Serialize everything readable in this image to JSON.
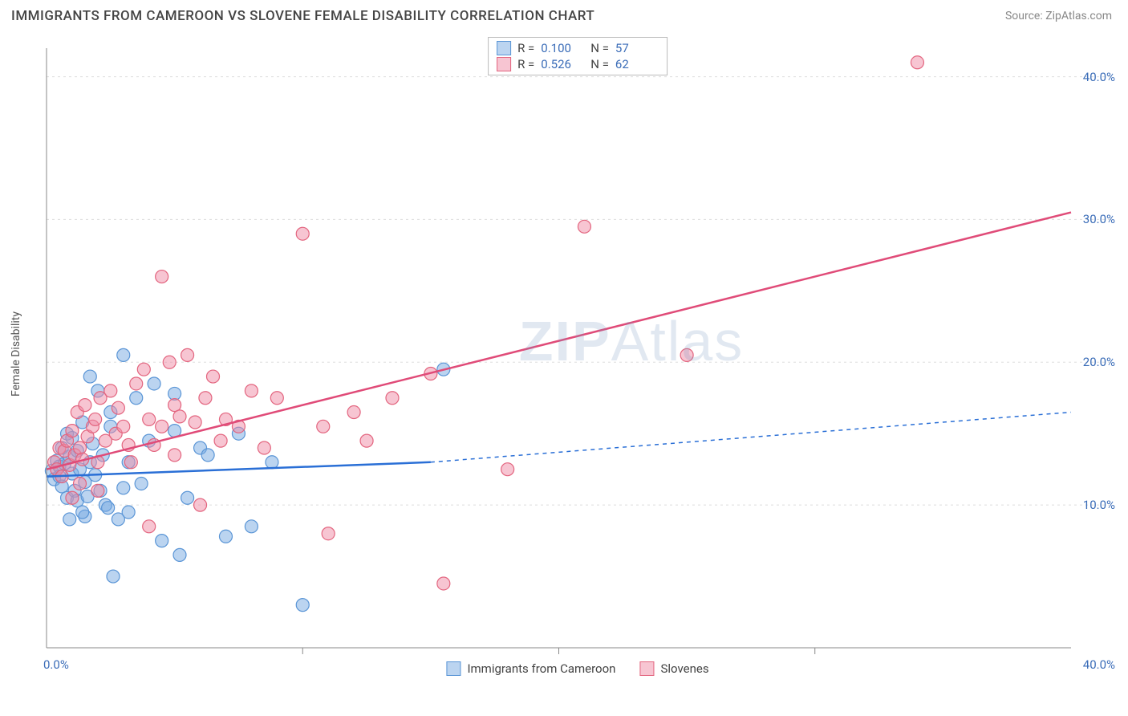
{
  "header": {
    "title": "IMMIGRANTS FROM CAMEROON VS SLOVENE FEMALE DISABILITY CORRELATION CHART",
    "source_label": "Source: ",
    "source_name": "ZipAtlas.com"
  },
  "watermark": {
    "z": "ZIP",
    "rest": "Atlas"
  },
  "chart": {
    "type": "scatter",
    "background_color": "#ffffff",
    "grid_color": "#dddddd",
    "axis_color": "#888888",
    "tick_label_color": "#3b6db8",
    "label_color": "#555555",
    "y_axis_label": "Female Disability",
    "marker_radius": 8,
    "marker_opacity": 0.55,
    "xlim": [
      0,
      40
    ],
    "ylim": [
      0,
      42
    ],
    "x_ticks": [
      {
        "value": 0,
        "label": "0.0%"
      },
      {
        "value": 40,
        "label": "40.0%"
      }
    ],
    "y_ticks": [
      {
        "value": 10,
        "label": "10.0%"
      },
      {
        "value": 20,
        "label": "20.0%"
      },
      {
        "value": 30,
        "label": "30.0%"
      },
      {
        "value": 40,
        "label": "40.0%"
      }
    ],
    "x_tick_marks": [
      10,
      20,
      30
    ],
    "series": [
      {
        "name": "Immigrants from Cameroon",
        "color_fill": "rgba(120,170,225,0.5)",
        "color_stroke": "#5a95d6",
        "line_color": "#2a6fd6",
        "r": "0.100",
        "n": "57",
        "regression": {
          "x1": 0,
          "y1": 12.0,
          "x2_solid": 15,
          "y2_solid": 13.0,
          "x2": 40,
          "y2": 16.5
        },
        "points": [
          [
            0.2,
            12.4
          ],
          [
            0.3,
            11.8
          ],
          [
            0.4,
            13.1
          ],
          [
            0.5,
            12.7
          ],
          [
            0.5,
            12.0
          ],
          [
            0.6,
            14.0
          ],
          [
            0.6,
            11.3
          ],
          [
            0.7,
            12.9
          ],
          [
            0.8,
            15.0
          ],
          [
            0.8,
            10.5
          ],
          [
            0.9,
            13.4
          ],
          [
            1.0,
            14.7
          ],
          [
            1.0,
            12.2
          ],
          [
            1.1,
            11.0
          ],
          [
            1.2,
            10.3
          ],
          [
            1.2,
            13.8
          ],
          [
            1.3,
            12.5
          ],
          [
            1.4,
            15.8
          ],
          [
            1.5,
            9.2
          ],
          [
            1.5,
            11.6
          ],
          [
            1.6,
            10.6
          ],
          [
            1.7,
            19.0
          ],
          [
            1.7,
            13.0
          ],
          [
            1.8,
            14.3
          ],
          [
            1.9,
            12.1
          ],
          [
            2.0,
            18.0
          ],
          [
            2.1,
            11.0
          ],
          [
            2.2,
            13.5
          ],
          [
            2.3,
            10.0
          ],
          [
            2.4,
            9.8
          ],
          [
            2.5,
            15.5
          ],
          [
            2.5,
            16.5
          ],
          [
            2.8,
            9.0
          ],
          [
            3.0,
            11.2
          ],
          [
            3.0,
            20.5
          ],
          [
            3.2,
            13.0
          ],
          [
            3.5,
            17.5
          ],
          [
            3.7,
            11.5
          ],
          [
            4.0,
            14.5
          ],
          [
            4.2,
            18.5
          ],
          [
            4.5,
            7.5
          ],
          [
            5.0,
            15.2
          ],
          [
            5.0,
            17.8
          ],
          [
            5.2,
            6.5
          ],
          [
            5.5,
            10.5
          ],
          [
            6.0,
            14.0
          ],
          [
            6.3,
            13.5
          ],
          [
            7.0,
            7.8
          ],
          [
            7.5,
            15.0
          ],
          [
            8.0,
            8.5
          ],
          [
            8.8,
            13.0
          ],
          [
            10.0,
            3.0
          ],
          [
            2.6,
            5.0
          ],
          [
            1.4,
            9.5
          ],
          [
            0.9,
            9.0
          ],
          [
            3.2,
            9.5
          ],
          [
            15.5,
            19.5
          ]
        ]
      },
      {
        "name": "Slovenes",
        "color_fill": "rgba(240,140,165,0.5)",
        "color_stroke": "#e3657f",
        "line_color": "#e04b78",
        "r": "0.526",
        "n": "62",
        "regression": {
          "x1": 0,
          "y1": 12.5,
          "x2_solid": 40,
          "y2_solid": 30.5,
          "x2": 40,
          "y2": 30.5
        },
        "points": [
          [
            0.3,
            13.0
          ],
          [
            0.4,
            12.5
          ],
          [
            0.5,
            14.0
          ],
          [
            0.6,
            12.0
          ],
          [
            0.7,
            13.8
          ],
          [
            0.8,
            14.5
          ],
          [
            0.9,
            12.8
          ],
          [
            1.0,
            15.2
          ],
          [
            1.1,
            13.5
          ],
          [
            1.2,
            16.5
          ],
          [
            1.3,
            14.0
          ],
          [
            1.4,
            13.2
          ],
          [
            1.5,
            17.0
          ],
          [
            1.6,
            14.8
          ],
          [
            1.8,
            15.5
          ],
          [
            1.9,
            16.0
          ],
          [
            2.0,
            13.0
          ],
          [
            2.1,
            17.5
          ],
          [
            2.3,
            14.5
          ],
          [
            2.5,
            18.0
          ],
          [
            2.7,
            15.0
          ],
          [
            2.8,
            16.8
          ],
          [
            3.0,
            15.5
          ],
          [
            3.2,
            14.2
          ],
          [
            3.5,
            18.5
          ],
          [
            3.8,
            19.5
          ],
          [
            4.0,
            8.5
          ],
          [
            4.0,
            16.0
          ],
          [
            4.2,
            14.2
          ],
          [
            4.5,
            15.5
          ],
          [
            4.5,
            26.0
          ],
          [
            4.8,
            20.0
          ],
          [
            5.0,
            17.0
          ],
          [
            5.2,
            16.2
          ],
          [
            5.5,
            20.5
          ],
          [
            5.8,
            15.8
          ],
          [
            6.0,
            10.0
          ],
          [
            6.2,
            17.5
          ],
          [
            6.5,
            19.0
          ],
          [
            6.8,
            14.5
          ],
          [
            7.0,
            16.0
          ],
          [
            7.5,
            15.5
          ],
          [
            8.0,
            18.0
          ],
          [
            8.5,
            14.0
          ],
          [
            9.0,
            17.5
          ],
          [
            10.0,
            29.0
          ],
          [
            10.8,
            15.5
          ],
          [
            11.0,
            8.0
          ],
          [
            12.0,
            16.5
          ],
          [
            12.5,
            14.5
          ],
          [
            13.5,
            17.5
          ],
          [
            15.0,
            19.2
          ],
          [
            15.5,
            4.5
          ],
          [
            18.0,
            12.5
          ],
          [
            21.0,
            29.5
          ],
          [
            25.0,
            20.5
          ],
          [
            34.0,
            41.0
          ],
          [
            1.0,
            10.5
          ],
          [
            1.3,
            11.5
          ],
          [
            2.0,
            11.0
          ],
          [
            3.3,
            13.0
          ],
          [
            5.0,
            13.5
          ]
        ]
      }
    ],
    "legend_bottom": [
      {
        "label": "Immigrants from Cameroon",
        "series": 0
      },
      {
        "label": "Slovenes",
        "series": 1
      }
    ]
  }
}
